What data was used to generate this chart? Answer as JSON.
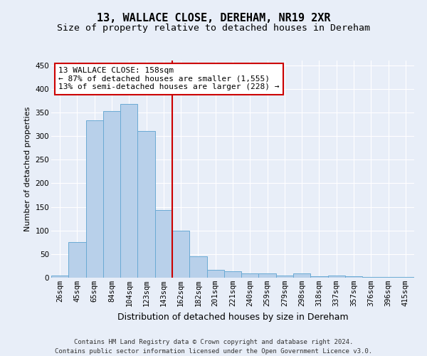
{
  "title": "13, WALLACE CLOSE, DEREHAM, NR19 2XR",
  "subtitle": "Size of property relative to detached houses in Dereham",
  "xlabel": "Distribution of detached houses by size in Dereham",
  "ylabel": "Number of detached properties",
  "categories": [
    "26sqm",
    "45sqm",
    "65sqm",
    "84sqm",
    "104sqm",
    "123sqm",
    "143sqm",
    "162sqm",
    "182sqm",
    "201sqm",
    "221sqm",
    "240sqm",
    "259sqm",
    "279sqm",
    "298sqm",
    "318sqm",
    "337sqm",
    "357sqm",
    "376sqm",
    "396sqm",
    "415sqm"
  ],
  "values": [
    5,
    75,
    333,
    353,
    368,
    311,
    144,
    100,
    46,
    17,
    13,
    9,
    9,
    4,
    9,
    3,
    5,
    3,
    2,
    1,
    1
  ],
  "bar_color": "#b8d0ea",
  "bar_edge_color": "#6aaad4",
  "vline_color": "#cc0000",
  "annotation_text": "13 WALLACE CLOSE: 158sqm\n← 87% of detached houses are smaller (1,555)\n13% of semi-detached houses are larger (228) →",
  "annotation_box_color": "#ffffff",
  "annotation_box_edge": "#cc0000",
  "footer_line1": "Contains HM Land Registry data © Crown copyright and database right 2024.",
  "footer_line2": "Contains public sector information licensed under the Open Government Licence v3.0.",
  "title_fontsize": 11,
  "subtitle_fontsize": 9.5,
  "ylabel_fontsize": 8,
  "xlabel_fontsize": 9,
  "tick_fontsize": 7.5,
  "ann_fontsize": 8,
  "footer_fontsize": 6.5,
  "ylim": [
    0,
    460
  ],
  "background_color": "#e8eef8",
  "plot_bg_color": "#e8eef8",
  "grid_color": "#ffffff"
}
